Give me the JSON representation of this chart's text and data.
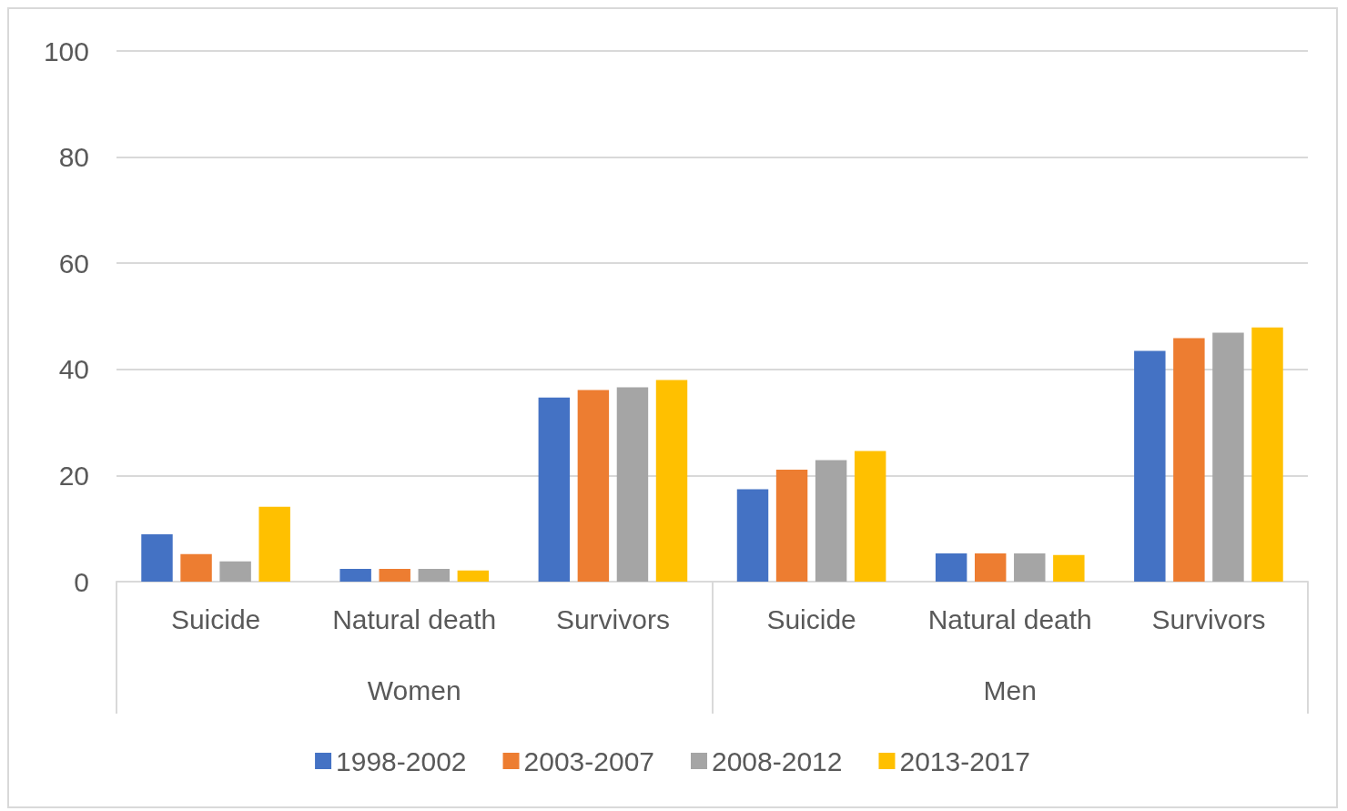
{
  "chart_data": {
    "type": "bar",
    "categories": [
      "Suicide",
      "Natural death",
      "Survivors",
      "Suicide",
      "Natural death",
      "Survivors"
    ],
    "annotations": [
      "Women",
      "Men"
    ],
    "series": [
      {
        "name": "1998-2002",
        "color": "#4472c4",
        "values": [
          8.9,
          2.4,
          34.7,
          17.4,
          5.3,
          43.5
        ]
      },
      {
        "name": "2003-2007",
        "color": "#ed7d31",
        "values": [
          5.2,
          2.4,
          36.1,
          21.1,
          5.3,
          45.9
        ]
      },
      {
        "name": "2008-2012",
        "color": "#a5a5a5",
        "values": [
          3.8,
          2.4,
          36.6,
          22.9,
          5.3,
          46.9
        ]
      },
      {
        "name": "2013-2017",
        "color": "#ffc000",
        "values": [
          14.1,
          2.1,
          38.0,
          24.6,
          5.0,
          47.9
        ]
      }
    ],
    "ylim": [
      0,
      100
    ],
    "yticks": [
      0,
      20,
      40,
      60,
      80,
      100
    ],
    "grid": "y",
    "legend": "bottom"
  }
}
